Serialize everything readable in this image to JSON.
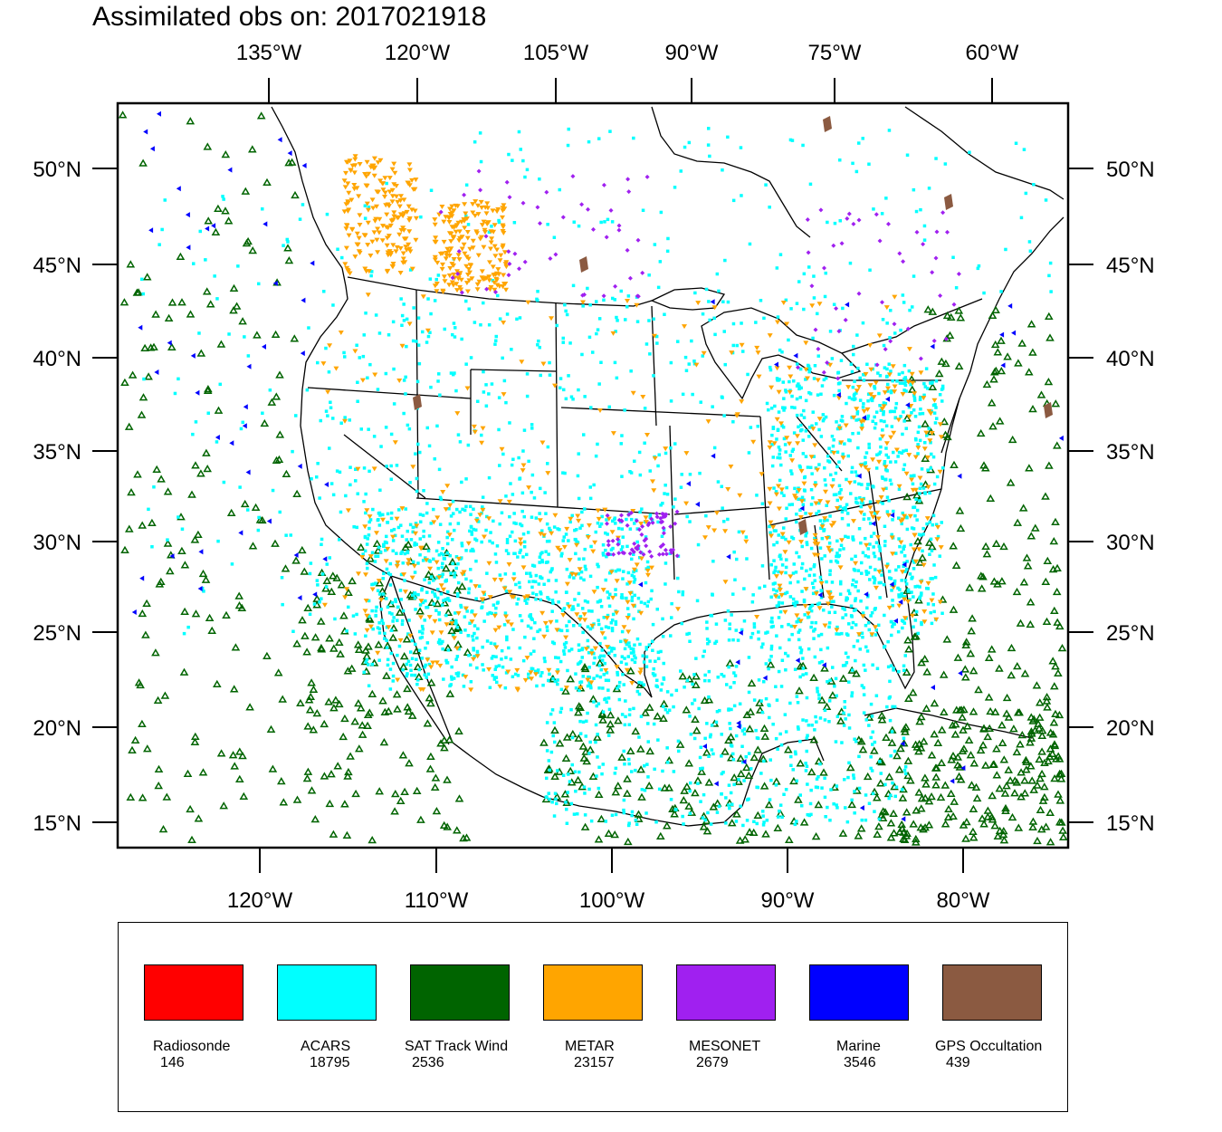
{
  "title": "Assimilated obs on: 2017021918",
  "top_lon_labels": [
    "135°W",
    "120°W",
    "105°W",
    "90°W",
    "75°W",
    "60°W"
  ],
  "bottom_lon_labels": [
    "120°W",
    "110°W",
    "100°W",
    "90°W",
    "80°W"
  ],
  "lat_labels": [
    "50°N",
    "45°N",
    "40°N",
    "35°N",
    "30°N",
    "25°N",
    "20°N",
    "15°N"
  ],
  "legend": [
    {
      "name": "Radiosonde",
      "count": "146",
      "color": "#ff0000"
    },
    {
      "name": "ACARS",
      "count": "18795",
      "color": "#00ffff"
    },
    {
      "name": "SAT Track Wind",
      "count": "2536",
      "color": "#006400"
    },
    {
      "name": "METAR",
      "count": "23157",
      "color": "#ffa500"
    },
    {
      "name": "MESONET",
      "count": "2679",
      "color": "#a020f0"
    },
    {
      "name": "Marine",
      "count": "3546",
      "color": "#0000ff"
    },
    {
      "name": "GPS Occultation",
      "count": "439",
      "color": "#8b5a41"
    }
  ]
}
